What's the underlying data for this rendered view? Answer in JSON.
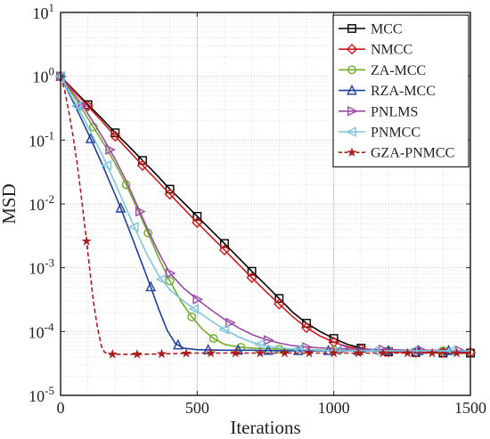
{
  "chart_data": {
    "type": "line",
    "xlabel": "Iterations",
    "ylabel": "MSD",
    "xlim": [
      0,
      1500
    ],
    "ylim": [
      1e-05,
      10
    ],
    "yscale": "log",
    "grid": "major-and-minor, dotted",
    "legend_position": "top-right",
    "x_ticks": [
      {
        "value": 0,
        "label": "0"
      },
      {
        "value": 500,
        "label": "500"
      },
      {
        "value": 1000,
        "label": "1000"
      },
      {
        "value": 1500,
        "label": "1500"
      }
    ],
    "y_ticks": [
      {
        "value": 10,
        "base": "10",
        "exp": "1"
      },
      {
        "value": 1,
        "base": "10",
        "exp": "0"
      },
      {
        "value": 0.1,
        "base": "10",
        "exp": "-1"
      },
      {
        "value": 0.01,
        "base": "10",
        "exp": "-2"
      },
      {
        "value": 0.001,
        "base": "10",
        "exp": "-3"
      },
      {
        "value": 0.0001,
        "base": "10",
        "exp": "-4"
      },
      {
        "value": 1e-05,
        "base": "10",
        "exp": "-5"
      }
    ],
    "series": [
      {
        "name": "MCC",
        "color": "#000000",
        "marker": "square",
        "dash": "solid",
        "x": [
          0,
          50,
          100,
          150,
          200,
          250,
          300,
          350,
          400,
          450,
          500,
          550,
          600,
          650,
          700,
          750,
          800,
          850,
          900,
          950,
          1000,
          1050,
          1100,
          1150,
          1200,
          1300,
          1400,
          1500
        ],
        "y": [
          1.0,
          0.6,
          0.36,
          0.22,
          0.13,
          0.08,
          0.048,
          0.029,
          0.017,
          0.0105,
          0.0064,
          0.0039,
          0.0024,
          0.00145,
          0.00088,
          0.00054,
          0.00033,
          0.0002,
          0.000135,
          0.0001,
          7.8e-05,
          6.3e-05,
          5.5e-05,
          5e-05,
          4.8e-05,
          4.7e-05,
          4.6e-05,
          4.6e-05
        ],
        "marker_x": [
          0,
          100,
          200,
          300,
          400,
          500,
          600,
          700,
          800,
          900,
          1000,
          1100,
          1200,
          1300,
          1400,
          1500
        ]
      },
      {
        "name": "NMCC",
        "color": "#d0191b",
        "marker": "diamond",
        "dash": "solid",
        "x": [
          0,
          50,
          100,
          150,
          200,
          250,
          300,
          350,
          400,
          450,
          500,
          550,
          600,
          650,
          700,
          750,
          800,
          850,
          900,
          950,
          1000,
          1050,
          1100,
          1150,
          1200,
          1300,
          1400,
          1500
        ],
        "y": [
          1.0,
          0.58,
          0.34,
          0.2,
          0.115,
          0.068,
          0.04,
          0.024,
          0.0142,
          0.0085,
          0.0051,
          0.0031,
          0.0019,
          0.00115,
          0.0007,
          0.00043,
          0.00027,
          0.00017,
          0.000115,
          8.5e-05,
          6.8e-05,
          5.8e-05,
          5.3e-05,
          5e-05,
          4.8e-05,
          4.7e-05,
          4.7e-05,
          4.7e-05
        ],
        "marker_x": [
          0,
          100,
          200,
          300,
          400,
          500,
          600,
          700,
          800,
          900,
          1000,
          1100,
          1200,
          1300,
          1400,
          1500
        ]
      },
      {
        "name": "ZA-MCC",
        "color": "#72ac2a",
        "marker": "circle",
        "dash": "solid",
        "x": [
          0,
          40,
          80,
          120,
          160,
          200,
          240,
          280,
          320,
          360,
          400,
          440,
          480,
          520,
          560,
          600,
          650,
          700,
          750,
          800,
          900,
          1000,
          1100,
          1200,
          1300,
          1400,
          1500
        ],
        "y": [
          1.0,
          0.55,
          0.3,
          0.16,
          0.085,
          0.043,
          0.02,
          0.0085,
          0.0035,
          0.0014,
          0.00062,
          0.0003,
          0.00017,
          0.000108,
          7.8e-05,
          6.3e-05,
          5.7e-05,
          5.5e-05,
          5.4e-05,
          5.3e-05,
          5.2e-05,
          5.1e-05,
          5e-05,
          5e-05,
          5e-05,
          5e-05,
          5e-05
        ],
        "marker_x": [
          0,
          120,
          240,
          320,
          400,
          480,
          560,
          660,
          800,
          1000,
          1200,
          1400
        ]
      },
      {
        "name": "RZA-MCC",
        "color": "#1d3fa0",
        "marker": "triangle-up",
        "dash": "solid",
        "x": [
          0,
          30,
          60,
          90,
          120,
          150,
          180,
          210,
          240,
          270,
          300,
          330,
          360,
          390,
          420,
          450,
          500,
          600,
          700,
          800,
          900,
          1000,
          1100,
          1200,
          1300,
          1400,
          1500
        ],
        "y": [
          1.0,
          0.55,
          0.3,
          0.16,
          0.085,
          0.044,
          0.022,
          0.011,
          0.0052,
          0.0024,
          0.0011,
          0.0005,
          0.00022,
          0.000105,
          6.5e-05,
          5.5e-05,
          5.2e-05,
          5.1e-05,
          5.1e-05,
          5e-05,
          5e-05,
          5e-05,
          5e-05,
          5e-05,
          5e-05,
          5e-05,
          5e-05
        ],
        "marker_x": [
          0,
          110,
          220,
          330,
          430,
          540,
          650,
          760,
          870,
          980,
          1090,
          1200,
          1310,
          1420
        ]
      },
      {
        "name": "PNLMS",
        "color": "#9a4aa2",
        "marker": "triangle-right",
        "dash": "solid",
        "x": [
          0,
          40,
          80,
          120,
          160,
          200,
          240,
          280,
          320,
          360,
          400,
          450,
          500,
          550,
          600,
          650,
          700,
          750,
          800,
          850,
          900,
          1000,
          1100,
          1200,
          1300,
          1400,
          1500
        ],
        "y": [
          1.0,
          0.6,
          0.35,
          0.19,
          0.1,
          0.05,
          0.023,
          0.0095,
          0.0039,
          0.0017,
          0.00082,
          0.00048,
          0.00032,
          0.00022,
          0.000155,
          0.000115,
          9e-05,
          7.5e-05,
          6.6e-05,
          6e-05,
          5.7e-05,
          5.4e-05,
          5.3e-05,
          5.2e-05,
          5.1e-05,
          5.1e-05,
          5e-05
        ],
        "marker_x": [
          0,
          80,
          180,
          290,
          400,
          500,
          620,
          760,
          900,
          1040,
          1180,
          1320,
          1460
        ]
      },
      {
        "name": "PNMCC",
        "color": "#7fc6dc",
        "marker": "triangle-left",
        "dash": "solid",
        "x": [
          0,
          40,
          80,
          120,
          160,
          200,
          240,
          280,
          320,
          360,
          400,
          450,
          500,
          550,
          600,
          650,
          700,
          750,
          800,
          900,
          1000,
          1100,
          1200,
          1300,
          1400,
          1500
        ],
        "y": [
          1.0,
          0.48,
          0.24,
          0.11,
          0.05,
          0.021,
          0.0085,
          0.0035,
          0.0015,
          0.00075,
          0.00045,
          0.0003,
          0.00021,
          0.000148,
          0.000108,
          8.3e-05,
          6.8e-05,
          6e-05,
          5.5e-05,
          5.2e-05,
          5e-05,
          5e-05,
          5e-05,
          5e-05,
          5e-05,
          5e-05
        ],
        "marker_x": [
          0,
          60,
          170,
          270,
          370,
          490,
          600,
          730,
          870,
          1010,
          1150,
          1290,
          1430
        ]
      },
      {
        "name": "GZA-PNMCC",
        "color": "#a81d1d",
        "marker": "star",
        "dash": "dashed",
        "x": [
          0,
          15,
          30,
          45,
          60,
          75,
          90,
          105,
          120,
          135,
          150,
          160,
          170,
          180,
          200,
          250,
          300,
          400,
          500,
          600,
          700,
          800,
          900,
          1000,
          1100,
          1200,
          1300,
          1400,
          1500
        ],
        "y": [
          1.0,
          0.6,
          0.28,
          0.12,
          0.045,
          0.014,
          0.004,
          0.0011,
          0.0003,
          0.000115,
          5.8e-05,
          4.8e-05,
          4.5e-05,
          4.4e-05,
          4.4e-05,
          4.4e-05,
          4.4e-05,
          4.5e-05,
          4.6e-05,
          4.6e-05,
          4.6e-05,
          4.6e-05,
          4.6e-05,
          4.6e-05,
          4.6e-05,
          4.6e-05,
          4.6e-05,
          4.6e-05,
          4.6e-05
        ],
        "marker_x": [
          95,
          190,
          280,
          370,
          460,
          550,
          640,
          730,
          820,
          910,
          1000,
          1090,
          1180,
          1270,
          1360,
          1450
        ]
      }
    ]
  }
}
